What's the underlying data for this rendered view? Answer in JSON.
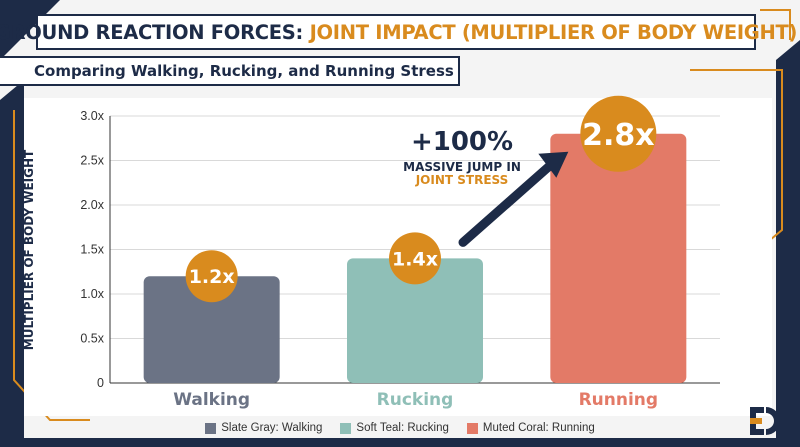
{
  "title": {
    "part1": "GROUND REACTION FORCES:",
    "part2": "JOINT IMPACT (MULTIPLIER OF BODY WEIGHT)"
  },
  "subtitle": "Comparing Walking, Rucking, and Running Stress",
  "colors": {
    "navy": "#1d2b47",
    "gold": "#d98b1e",
    "slate": "#6b7385",
    "teal": "#8fbfb7",
    "coral": "#e37a67"
  },
  "annotation": {
    "big": "+100%",
    "line1": "MASSIVE JUMP IN",
    "line2": "JOINT STRESS"
  },
  "legend": [
    {
      "label": "Slate Gray: Walking",
      "color": "#6b7385"
    },
    {
      "label": "Soft Teal: Rucking",
      "color": "#8fbfb7"
    },
    {
      "label": "Muted Coral: Running",
      "color": "#e37a67"
    }
  ],
  "logo_icon": "ed-logo-icon",
  "chart_data": {
    "type": "bar",
    "categories": [
      "Walking",
      "Rucking",
      "Running"
    ],
    "values": [
      1.2,
      1.4,
      2.8
    ],
    "value_labels": [
      "1.2x",
      "1.4x",
      "2.8x"
    ],
    "colors": [
      "#6b7385",
      "#8fbfb7",
      "#e37a67"
    ],
    "ylabel": "MULTIPLIER OF BODY WEIGHT",
    "ylim": [
      0,
      3.0
    ],
    "yticks": [
      0,
      0.5,
      1.0,
      1.5,
      2.0,
      2.5,
      3.0
    ],
    "ytick_labels": [
      "0",
      "0.5x",
      "1.0x",
      "1.5x",
      "2.0x",
      "2.5x",
      "3.0x"
    ],
    "grid": true,
    "legend_position": "bottom"
  }
}
